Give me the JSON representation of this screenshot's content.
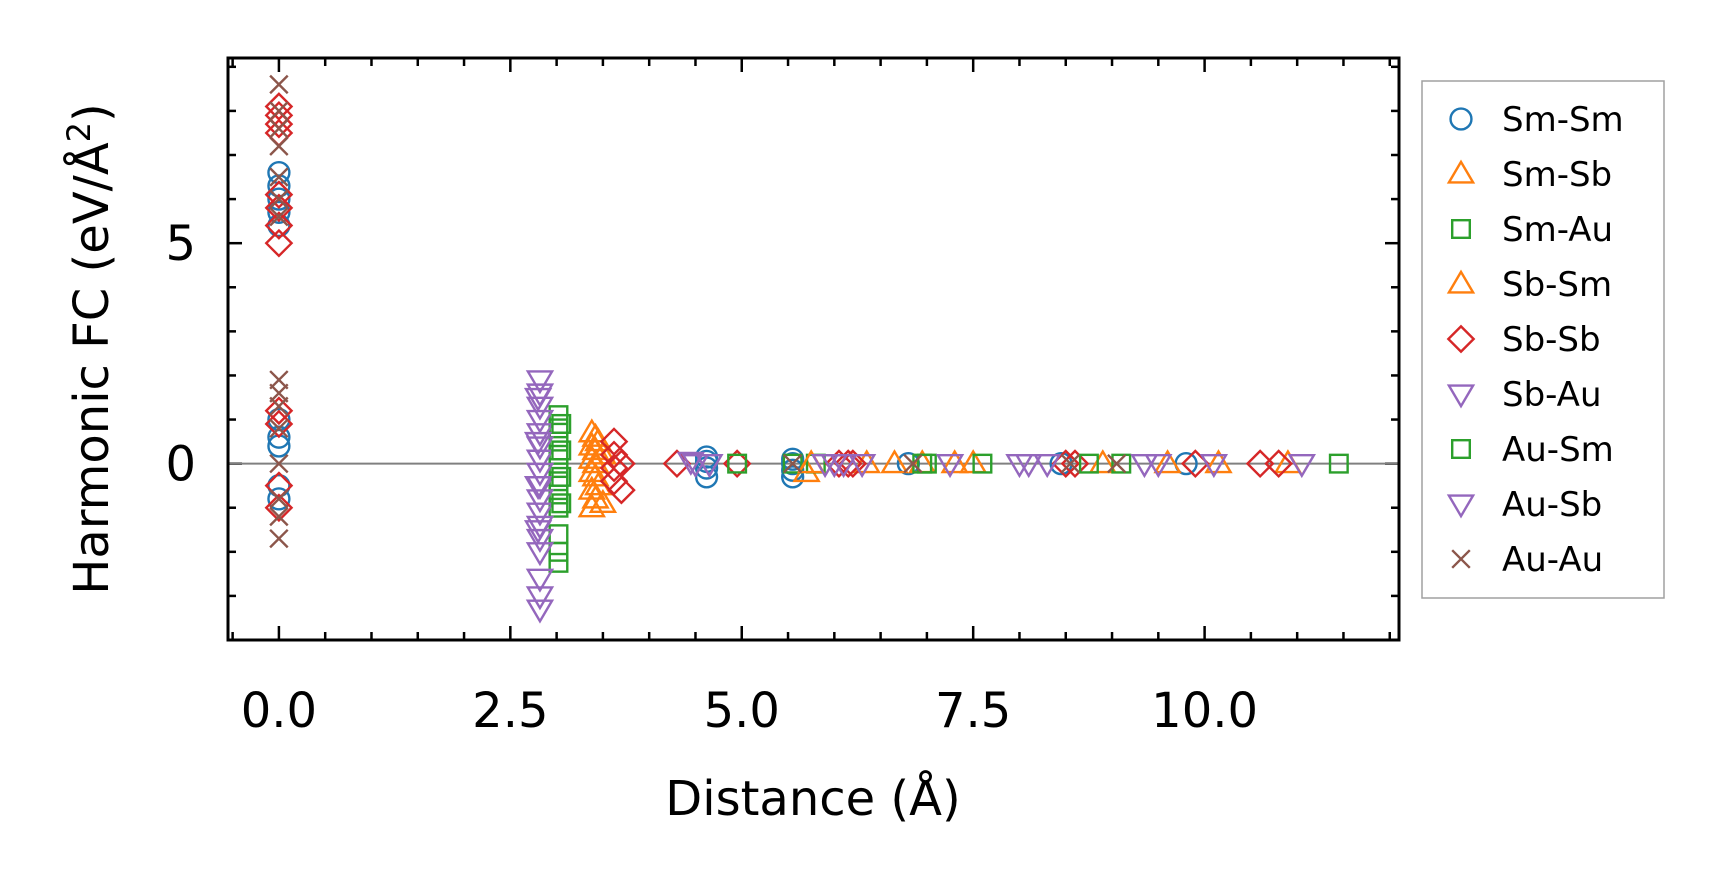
{
  "chart_data": {
    "type": "scatter",
    "title": "",
    "xlabel": "Distance (Å)",
    "ylabel": "Harmonic FC (eV/Å²)",
    "ylabel_main": "Harmonic FC (eV/Å",
    "ylabel_sup": "2",
    "ylabel_close": ")",
    "xlim": [
      -0.55,
      12.1
    ],
    "ylim": [
      -4.0,
      9.2
    ],
    "xticks": [
      0.0,
      2.5,
      5.0,
      7.5,
      10.0
    ],
    "xtick_labels": [
      "0.0",
      "2.5",
      "5.0",
      "7.5",
      "10.0"
    ],
    "yticks": [
      0,
      5
    ],
    "ytick_labels": [
      "0",
      "5"
    ],
    "zero_line": true,
    "legend_position": "outside-right",
    "series": [
      {
        "name": "Sm-Sm",
        "marker": "circle",
        "color": "#1f77b4",
        "points": [
          [
            0,
            6.6
          ],
          [
            0,
            6.3
          ],
          [
            0,
            6.0
          ],
          [
            0,
            5.7
          ],
          [
            0,
            5.4
          ],
          [
            0,
            1.0
          ],
          [
            0,
            0.6
          ],
          [
            0,
            0.4
          ],
          [
            0,
            -0.5
          ],
          [
            0,
            -0.8
          ],
          [
            4.62,
            0.15
          ],
          [
            4.62,
            -0.1
          ],
          [
            4.62,
            -0.3
          ],
          [
            4.62,
            0.05
          ],
          [
            5.55,
            0.1
          ],
          [
            5.55,
            -0.15
          ],
          [
            5.55,
            -0.3
          ],
          [
            5.55,
            0.0
          ],
          [
            6.8,
            0.0
          ],
          [
            8.45,
            0.0
          ],
          [
            9.8,
            0.0
          ]
        ]
      },
      {
        "name": "Sm-Sb",
        "marker": "triangle-up",
        "color": "#ff7f0e",
        "points": [
          [
            3.38,
            0.7
          ],
          [
            3.38,
            0.4
          ],
          [
            3.38,
            0.1
          ],
          [
            3.38,
            -0.2
          ],
          [
            3.38,
            -0.6
          ],
          [
            3.38,
            -1.0
          ],
          [
            3.45,
            0.5
          ],
          [
            3.45,
            -0.5
          ],
          [
            3.5,
            0.2
          ],
          [
            3.5,
            -0.9
          ],
          [
            5.7,
            -0.2
          ],
          [
            6.35,
            0.0
          ],
          [
            6.65,
            0.0
          ],
          [
            6.95,
            0.0
          ],
          [
            7.5,
            0.0
          ],
          [
            8.9,
            0.0
          ],
          [
            10.15,
            0.0
          ]
        ]
      },
      {
        "name": "Sm-Au",
        "marker": "square",
        "color": "#2ca02c",
        "points": [
          [
            3.02,
            1.1
          ],
          [
            3.02,
            0.8
          ],
          [
            3.02,
            0.5
          ],
          [
            3.02,
            0.2
          ],
          [
            3.02,
            -0.1
          ],
          [
            3.02,
            -0.4
          ],
          [
            3.02,
            -0.7
          ],
          [
            3.02,
            -1.0
          ],
          [
            3.02,
            -1.6
          ],
          [
            3.02,
            -2.0
          ],
          [
            3.02,
            -2.25
          ],
          [
            5.55,
            0.0
          ],
          [
            5.8,
            0.0
          ],
          [
            7.0,
            0.0
          ],
          [
            7.6,
            0.0
          ],
          [
            9.1,
            0.0
          ],
          [
            11.45,
            0.0
          ]
        ]
      },
      {
        "name": "Sb-Sm",
        "marker": "triangle-up",
        "color": "#ff7f0e",
        "points": [
          [
            3.42,
            0.6
          ],
          [
            3.42,
            0.3
          ],
          [
            3.42,
            0.0
          ],
          [
            3.42,
            -0.3
          ],
          [
            3.42,
            -0.8
          ],
          [
            5.75,
            0.0
          ],
          [
            7.3,
            0.0
          ],
          [
            9.6,
            0.0
          ],
          [
            10.9,
            0.0
          ]
        ]
      },
      {
        "name": "Sb-Sb",
        "marker": "diamond",
        "color": "#d62728",
        "points": [
          [
            0,
            8.1
          ],
          [
            0,
            7.9
          ],
          [
            0,
            7.7
          ],
          [
            0,
            7.5
          ],
          [
            0,
            6.1
          ],
          [
            0,
            5.8
          ],
          [
            0,
            5.4
          ],
          [
            0,
            5.0
          ],
          [
            0,
            1.2
          ],
          [
            0,
            0.9
          ],
          [
            0,
            -0.5
          ],
          [
            0,
            -1.0
          ],
          [
            3.62,
            0.5
          ],
          [
            3.62,
            0.2
          ],
          [
            3.62,
            -0.1
          ],
          [
            3.62,
            -0.4
          ],
          [
            3.7,
            0.0
          ],
          [
            3.7,
            -0.6
          ],
          [
            4.3,
            0.0
          ],
          [
            4.95,
            0.0
          ],
          [
            6.05,
            0.0
          ],
          [
            6.15,
            0.0
          ],
          [
            6.2,
            0.0
          ],
          [
            8.5,
            0.0
          ],
          [
            8.6,
            0.0
          ],
          [
            9.9,
            0.0
          ],
          [
            10.6,
            0.0
          ],
          [
            10.8,
            0.0
          ]
        ]
      },
      {
        "name": "Sb-Au",
        "marker": "triangle-down",
        "color": "#9467bd",
        "points": [
          [
            2.82,
            1.9
          ],
          [
            2.82,
            1.6
          ],
          [
            2.82,
            1.3
          ],
          [
            2.82,
            1.0
          ],
          [
            2.82,
            0.7
          ],
          [
            2.82,
            0.4
          ],
          [
            2.82,
            0.1
          ],
          [
            2.82,
            -0.2
          ],
          [
            2.82,
            -0.5
          ],
          [
            2.82,
            -0.8
          ],
          [
            2.82,
            -1.1
          ],
          [
            2.82,
            -1.4
          ],
          [
            2.82,
            -1.7
          ],
          [
            2.82,
            -2.0
          ],
          [
            2.82,
            -2.6
          ],
          [
            2.82,
            -3.0
          ],
          [
            2.82,
            -3.3
          ],
          [
            4.45,
            0.05
          ],
          [
            4.65,
            0.0
          ],
          [
            5.9,
            0.0
          ],
          [
            6.0,
            0.0
          ],
          [
            6.3,
            0.0
          ],
          [
            7.25,
            0.0
          ],
          [
            8.0,
            0.0
          ],
          [
            8.3,
            0.0
          ],
          [
            9.35,
            0.0
          ],
          [
            10.1,
            0.0
          ],
          [
            11.05,
            0.0
          ]
        ]
      },
      {
        "name": "Au-Sm",
        "marker": "square",
        "color": "#2ca02c",
        "points": [
          [
            3.05,
            0.9
          ],
          [
            3.05,
            0.3
          ],
          [
            3.05,
            -0.3
          ],
          [
            3.05,
            -0.9
          ],
          [
            4.95,
            0.0
          ],
          [
            6.95,
            0.0
          ],
          [
            8.75,
            0.0
          ]
        ]
      },
      {
        "name": "Au-Sb",
        "marker": "triangle-down",
        "color": "#9467bd",
        "points": [
          [
            2.8,
            1.5
          ],
          [
            2.8,
            0.5
          ],
          [
            2.8,
            -0.5
          ],
          [
            2.8,
            -1.5
          ],
          [
            4.5,
            0.0
          ],
          [
            6.1,
            0.0
          ],
          [
            8.1,
            0.0
          ],
          [
            9.5,
            0.0
          ]
        ]
      },
      {
        "name": "Au-Au",
        "marker": "x",
        "color": "#8c564b",
        "points": [
          [
            0,
            8.6
          ],
          [
            0,
            8.0
          ],
          [
            0,
            7.6
          ],
          [
            0,
            7.2
          ],
          [
            0,
            6.5
          ],
          [
            0,
            6.0
          ],
          [
            0,
            5.6
          ],
          [
            0,
            1.9
          ],
          [
            0,
            1.6
          ],
          [
            0,
            1.3
          ],
          [
            0,
            0.8
          ],
          [
            0,
            0.0
          ],
          [
            0,
            -0.8
          ],
          [
            0,
            -1.2
          ],
          [
            0,
            -1.7
          ],
          [
            5.55,
            0.0
          ],
          [
            6.85,
            0.0
          ],
          [
            8.55,
            0.0
          ],
          [
            9.05,
            0.0
          ]
        ]
      }
    ]
  }
}
